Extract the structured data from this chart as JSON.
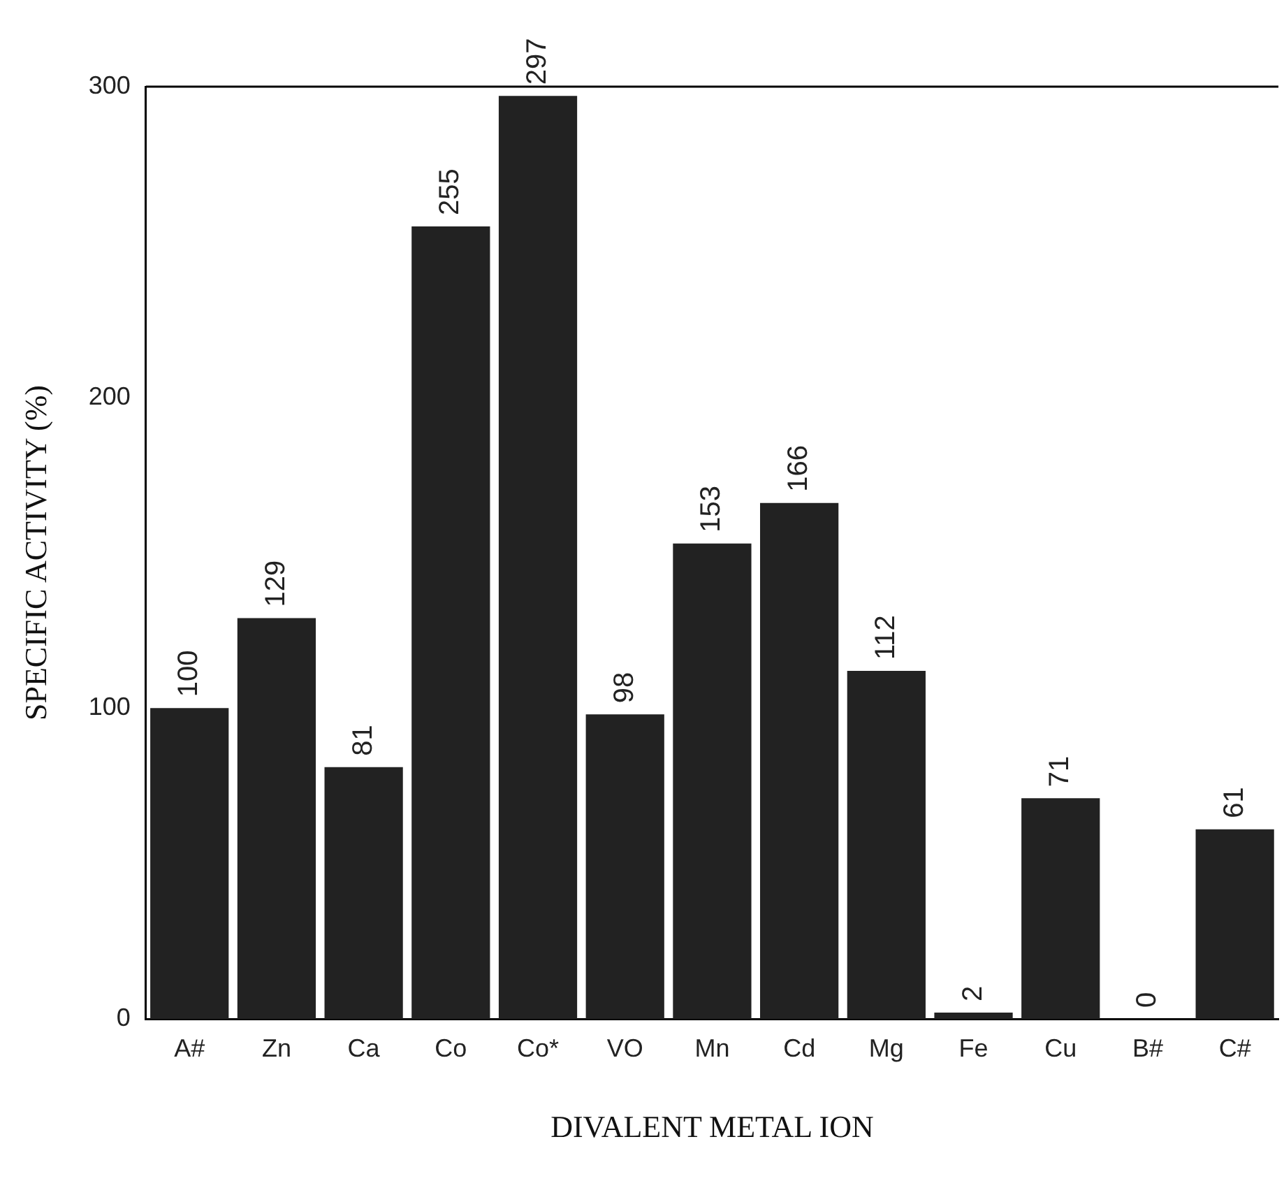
{
  "chart_data": {
    "type": "bar",
    "xlabel": "DIVALENT METAL ION",
    "ylabel": "SPECIFIC ACTIVITY (%)",
    "categories": [
      "A#",
      "Zn",
      "Ca",
      "Co",
      "Co*",
      "VO",
      "Mn",
      "Cd",
      "Mg",
      "Fe",
      "Cu",
      "B#",
      "C#"
    ],
    "values": [
      100,
      129,
      81,
      255,
      297,
      98,
      153,
      166,
      112,
      2,
      71,
      0,
      61
    ],
    "color": "#222222",
    "ylim": [
      0,
      300
    ],
    "yticks": [
      0,
      100,
      200,
      300
    ],
    "grid": false,
    "legend": false,
    "data_labels": true
  }
}
